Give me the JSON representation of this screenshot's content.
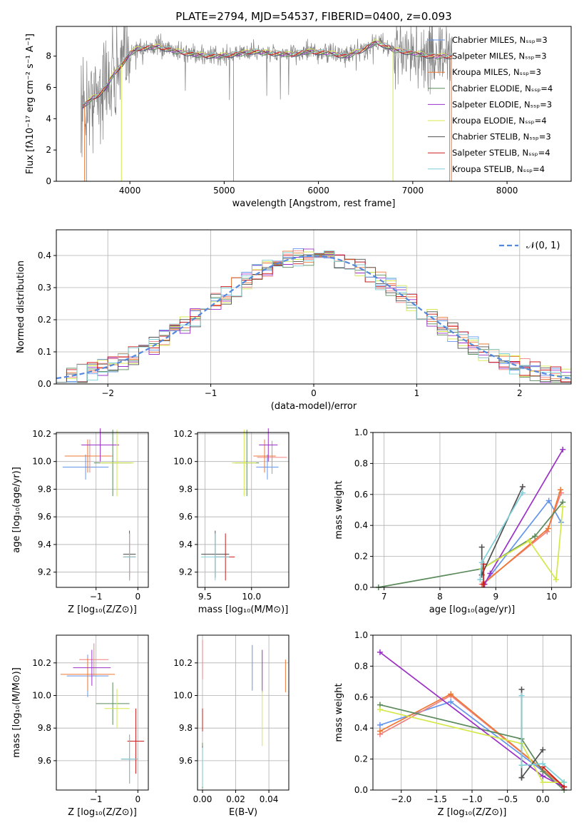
{
  "colors": {
    "chabrier_miles": "#6495ed",
    "salpeter_miles": "#f08080",
    "kroupa_miles": "#ee7733",
    "chabrier_elodie": "#5b8a5b",
    "salpeter_elodie": "#9b30c8",
    "kroupa_elodie": "#d4e84a",
    "chabrier_stelib": "#505050",
    "salpeter_stelib": "#cc1a1a",
    "kroupa_stelib": "#7fd0d8",
    "spectrum": "#808080",
    "normal": "#5588dd"
  },
  "chart_data": [
    {
      "id": "spectrum",
      "type": "line",
      "title": "PLATE=2794, MJD=54537, FIBERID=0400, z=0.093",
      "xlabel": "wavelength [Angstrom, rest frame]",
      "ylabel": "Flux [fλ10⁻¹⁷ erg cm⁻² s⁻¹ A⁻¹]",
      "xlim": [
        3220,
        8680
      ],
      "ylim": [
        0,
        9.9
      ],
      "xticks": [
        4000,
        5000,
        6000,
        7000,
        8000
      ],
      "yticks": [
        0,
        2,
        4,
        6,
        8
      ],
      "legend_position": "upper right",
      "legend": [
        "Chabrier MILES, N_SSP=3",
        "Salpeter MILES, N_SSP=3",
        "Kroupa MILES, N_SSP=3",
        "Chabrier ELODIE, N_SSP=4",
        "Salpeter ELODIE, N_SSP=3",
        "Kroupa ELODIE, N_SSP=4",
        "Chabrier STELIB, N_SSP=3",
        "Salpeter STELIB, N_SSP=4",
        "Kroupa STELIB, N_SSP=4"
      ],
      "continuum": {
        "x": [
          3480,
          3520,
          3600,
          3680,
          3750,
          3800,
          3850,
          3900,
          3950,
          4000,
          4100,
          4300,
          4500,
          4700,
          4900,
          5100,
          5300,
          5500,
          5700,
          5900,
          6100,
          6300,
          6500,
          6600,
          6700,
          6800,
          7000,
          7200,
          7400
        ],
        "y": [
          4.6,
          4.9,
          5.3,
          5.6,
          6.0,
          6.6,
          7.0,
          7.4,
          7.7,
          8.2,
          8.5,
          8.6,
          8.3,
          8.1,
          8.0,
          8.1,
          8.3,
          8.2,
          8.1,
          8.3,
          8.2,
          8.0,
          8.5,
          8.9,
          8.7,
          8.4,
          8.2,
          8.0,
          8.0
        ]
      }
    },
    {
      "id": "residuals",
      "type": "histogram",
      "xlabel": "(data-model)/error",
      "ylabel": "Normed distribution",
      "xlim": [
        -2.5,
        2.5
      ],
      "ylim": [
        0,
        0.48
      ],
      "xticks": [
        -2,
        -1,
        0,
        1,
        2
      ],
      "yticks": [
        0.0,
        0.1,
        0.2,
        0.3,
        0.4
      ],
      "grid": true,
      "legend_position": "upper right",
      "legend": [
        "𝒩(0, 1)"
      ]
    },
    {
      "id": "age_vs_z",
      "type": "errorbar",
      "xlabel": "Z [log₁₀(Z/Z⊙)]",
      "ylabel": "age  [log₁₀(age/yr)]",
      "xlim": [
        -1.95,
        0.25
      ],
      "ylim": [
        9.09,
        10.21
      ],
      "xticks": [
        -1,
        0
      ],
      "yticks": [
        9.2,
        9.4,
        9.6,
        9.8,
        10.0,
        10.2
      ],
      "grid": true,
      "points": [
        {
          "model": "chabrier_miles",
          "x": -1.25,
          "xerr": 0.55,
          "y": 9.96,
          "yerr": 0.09
        },
        {
          "model": "salpeter_miles",
          "x": -1.15,
          "xerr": 0.55,
          "y": 10.04,
          "yerr": 0.12
        },
        {
          "model": "kroupa_miles",
          "x": -1.2,
          "xerr": 0.55,
          "y": 10.04,
          "yerr": 0.12
        },
        {
          "model": "chabrier_elodie",
          "x": -0.6,
          "xerr": 0.45,
          "y": 9.99,
          "yerr": 0.24
        },
        {
          "model": "salpeter_elodie",
          "x": -0.9,
          "xerr": 0.45,
          "y": 10.12,
          "yerr": 0.12
        },
        {
          "model": "kroupa_elodie",
          "x": -0.5,
          "xerr": 0.4,
          "y": 9.99,
          "yerr": 0.24
        },
        {
          "model": "chabrier_stelib",
          "x": -0.2,
          "xerr": 0.15,
          "y": 9.33,
          "yerr": 0.17
        },
        {
          "model": "salpeter_stelib",
          "x": -0.2,
          "xerr": 0.15,
          "y": 9.31,
          "yerr": 0.17
        },
        {
          "model": "kroupa_stelib",
          "x": -0.2,
          "xerr": 0.15,
          "y": 9.31,
          "yerr": 0.17
        }
      ]
    },
    {
      "id": "age_vs_mass",
      "type": "errorbar",
      "xlabel": "mass [log₁₀(M/M⊙)]",
      "ylabel": "",
      "xlim": [
        9.42,
        10.4
      ],
      "ylim": [
        9.09,
        10.21
      ],
      "xticks": [
        9.5,
        10.0
      ],
      "yticks": [
        9.2,
        9.4,
        9.6,
        9.8,
        10.0,
        10.2
      ],
      "grid": true,
      "points": [
        {
          "model": "chabrier_miles",
          "x": 10.17,
          "xerr": 0.12,
          "y": 9.96,
          "yerr": 0.09
        },
        {
          "model": "salpeter_miles",
          "x": 10.22,
          "xerr": 0.16,
          "y": 10.03,
          "yerr": 0.12
        },
        {
          "model": "kroupa_miles",
          "x": 10.14,
          "xerr": 0.12,
          "y": 10.04,
          "yerr": 0.12
        },
        {
          "model": "chabrier_elodie",
          "x": 9.95,
          "xerr": 0.13,
          "y": 9.99,
          "yerr": 0.24
        },
        {
          "model": "salpeter_elodie",
          "x": 10.18,
          "xerr": 0.1,
          "y": 10.12,
          "yerr": 0.12
        },
        {
          "model": "kroupa_elodie",
          "x": 9.92,
          "xerr": 0.13,
          "y": 9.99,
          "yerr": 0.24
        },
        {
          "model": "chabrier_stelib",
          "x": 9.61,
          "xerr": 0.15,
          "y": 9.33,
          "yerr": 0.17
        },
        {
          "model": "salpeter_stelib",
          "x": 9.72,
          "xerr": 0.1,
          "y": 9.31,
          "yerr": 0.17
        },
        {
          "model": "kroupa_stelib",
          "x": 9.61,
          "xerr": 0.15,
          "y": 9.31,
          "yerr": 0.17
        }
      ]
    },
    {
      "id": "weight_vs_age",
      "type": "line",
      "xlabel": "age  [log₁₀(age/yr)]",
      "ylabel": "mass weight",
      "xlim": [
        6.8,
        10.35
      ],
      "ylim": [
        0,
        1.0
      ],
      "xticks": [
        7,
        8,
        9,
        10
      ],
      "yticks": [
        0.0,
        0.2,
        0.4,
        0.6,
        0.8,
        1.0
      ],
      "grid": true,
      "series": [
        {
          "model": "chabrier_miles",
          "x": [
            8.78,
            9.95,
            10.17
          ],
          "y": [
            0.02,
            0.56,
            0.42
          ]
        },
        {
          "model": "salpeter_miles",
          "x": [
            8.75,
            9.92,
            10.17
          ],
          "y": [
            0.02,
            0.36,
            0.61
          ]
        },
        {
          "model": "kroupa_miles",
          "x": [
            8.77,
            9.94,
            10.16
          ],
          "y": [
            0.02,
            0.38,
            0.63
          ]
        },
        {
          "model": "chabrier_elodie",
          "x": [
            6.9,
            8.75,
            9.7,
            10.2
          ],
          "y": [
            0.0,
            0.12,
            0.33,
            0.55
          ]
        },
        {
          "model": "salpeter_elodie",
          "x": [
            8.8,
            8.9,
            10.2
          ],
          "y": [
            0.02,
            0.09,
            0.89
          ]
        },
        {
          "model": "kroupa_elodie",
          "x": [
            8.75,
            9.6,
            10.08,
            10.2
          ],
          "y": [
            0.12,
            0.3,
            0.05,
            0.52
          ]
        },
        {
          "model": "chabrier_stelib",
          "x": [
            8.75,
            8.75,
            9.48
          ],
          "y": [
            0.26,
            0.08,
            0.65
          ]
        },
        {
          "model": "salpeter_stelib",
          "x": [
            8.78,
            8.78
          ],
          "y": [
            0.02,
            0.15
          ]
        },
        {
          "model": "kroupa_stelib",
          "x": [
            8.72,
            8.75,
            9.48
          ],
          "y": [
            0.05,
            0.16,
            0.61
          ]
        }
      ]
    },
    {
      "id": "mass_vs_z",
      "type": "errorbar",
      "xlabel": "Z [log₁₀(Z/Z⊙)]",
      "ylabel": "mass [log₁₀(M/M⊙)]",
      "xlim": [
        -1.95,
        0.25
      ],
      "ylim": [
        9.42,
        10.37
      ],
      "xticks": [
        -1,
        0
      ],
      "yticks": [
        9.6,
        9.8,
        10.0,
        10.2
      ],
      "grid": true,
      "points": [
        {
          "model": "chabrier_miles",
          "x": -1.2,
          "xerr": 0.5,
          "y": 10.12,
          "yerr": 0.13
        },
        {
          "model": "salpeter_miles",
          "x": -1.05,
          "xerr": 0.35,
          "y": 10.22,
          "yerr": 0.1
        },
        {
          "model": "kroupa_miles",
          "x": -1.2,
          "xerr": 0.65,
          "y": 10.13,
          "yerr": 0.1
        },
        {
          "model": "chabrier_elodie",
          "x": -0.6,
          "xerr": 0.4,
          "y": 9.95,
          "yerr": 0.13
        },
        {
          "model": "salpeter_elodie",
          "x": -1.1,
          "xerr": 0.45,
          "y": 10.17,
          "yerr": 0.11
        },
        {
          "model": "kroupa_elodie",
          "x": -0.5,
          "xerr": 0.3,
          "y": 9.92,
          "yerr": 0.12
        },
        {
          "model": "chabrier_stelib",
          "x": -0.2,
          "xerr": 0.2,
          "y": 9.61,
          "yerr": 0.15
        },
        {
          "model": "salpeter_stelib",
          "x": -0.05,
          "xerr": 0.2,
          "y": 9.72,
          "yerr": 0.2
        },
        {
          "model": "kroupa_stelib",
          "x": -0.2,
          "xerr": 0.2,
          "y": 9.61,
          "yerr": 0.15
        }
      ]
    },
    {
      "id": "mass_vs_ebv",
      "type": "errorbar",
      "xlabel": "E(B-V)",
      "ylabel": "",
      "xlim": [
        -0.003,
        0.052
      ],
      "ylim": [
        9.42,
        10.37
      ],
      "xticks": [
        0.0,
        0.02,
        0.04
      ],
      "yticks": [
        9.6,
        9.8,
        10.0,
        10.2
      ],
      "grid": true,
      "points": [
        {
          "model": "chabrier_miles",
          "x": 0.03,
          "xerr": 0.0,
          "y": 10.17,
          "yerr": 0.14
        },
        {
          "model": "salpeter_miles",
          "x": 0.0,
          "xerr": 0.0,
          "y": 10.22,
          "yerr": 0.12
        },
        {
          "model": "kroupa_miles",
          "x": 0.05,
          "xerr": 0.0,
          "y": 10.12,
          "yerr": 0.1
        },
        {
          "model": "chabrier_elodie",
          "x": 0.0,
          "xerr": 0.0,
          "y": 9.57,
          "yerr": 0.14
        },
        {
          "model": "salpeter_elodie",
          "x": 0.036,
          "xerr": 0.0,
          "y": 10.15,
          "yerr": 0.13
        },
        {
          "model": "kroupa_elodie",
          "x": 0.036,
          "xerr": 0.0,
          "y": 9.86,
          "yerr": 0.17
        },
        {
          "model": "chabrier_stelib",
          "x": 0.0,
          "xerr": 0.0,
          "y": 9.57,
          "yerr": 0.12
        },
        {
          "model": "salpeter_stelib",
          "x": 0.0,
          "xerr": 0.0,
          "y": 9.85,
          "yerr": 0.07
        },
        {
          "model": "kroupa_stelib",
          "x": 0.0,
          "xerr": 0.0,
          "y": 9.56,
          "yerr": 0.12
        }
      ]
    },
    {
      "id": "weight_vs_z",
      "type": "line",
      "xlabel": "Z [log₁₀(Z/Z⊙)]",
      "ylabel": "mass weight",
      "xlim": [
        -2.4,
        0.4
      ],
      "ylim": [
        0,
        1.0
      ],
      "xticks": [
        -2.0,
        -1.5,
        -1.0,
        -0.5,
        0.0
      ],
      "yticks": [
        0.0,
        0.2,
        0.4,
        0.6,
        0.8,
        1.0
      ],
      "grid": true,
      "series": [
        {
          "model": "chabrier_miles",
          "x": [
            -2.3,
            -1.3,
            0.3
          ],
          "y": [
            0.42,
            0.57,
            0.02
          ]
        },
        {
          "model": "salpeter_miles",
          "x": [
            -2.3,
            -1.3,
            0.3
          ],
          "y": [
            0.36,
            0.61,
            0.02
          ]
        },
        {
          "model": "kroupa_miles",
          "x": [
            -2.3,
            -1.3,
            0.3
          ],
          "y": [
            0.38,
            0.62,
            0.02
          ]
        },
        {
          "model": "chabrier_elodie",
          "x": [
            -2.3,
            -0.3,
            0.0,
            0.3
          ],
          "y": [
            0.55,
            0.33,
            0.12,
            0.0
          ]
        },
        {
          "model": "salpeter_elodie",
          "x": [
            -2.3,
            0.0,
            0.3
          ],
          "y": [
            0.89,
            0.09,
            0.02
          ]
        },
        {
          "model": "kroupa_elodie",
          "x": [
            -2.3,
            -0.3,
            0.0,
            0.3
          ],
          "y": [
            0.52,
            0.3,
            0.05,
            0.05
          ]
        },
        {
          "model": "chabrier_stelib",
          "x": [
            -0.3,
            0.0,
            -0.3,
            -0.3
          ],
          "y": [
            0.08,
            0.26,
            0.08,
            0.65
          ]
        },
        {
          "model": "salpeter_stelib",
          "x": [
            0.0,
            0.3
          ],
          "y": [
            0.15,
            0.02
          ]
        },
        {
          "model": "kroupa_stelib",
          "x": [
            -0.3,
            -0.3,
            0.0,
            0.3
          ],
          "y": [
            0.61,
            0.16,
            0.17,
            0.05
          ]
        }
      ]
    }
  ]
}
